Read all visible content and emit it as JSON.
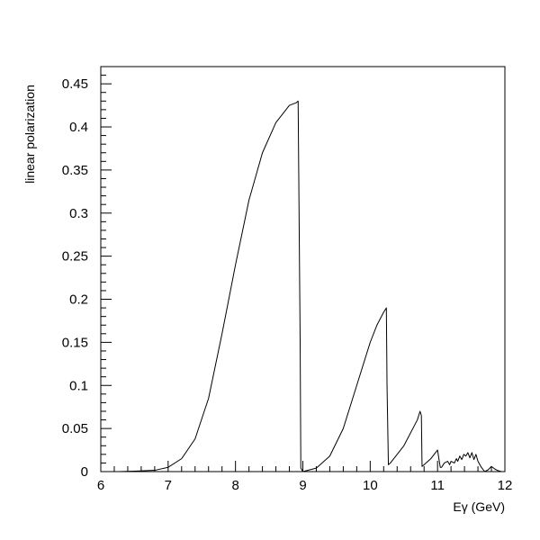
{
  "chart_data": {
    "type": "line",
    "title": "",
    "xlabel": "Eγ (GeV)",
    "ylabel": "linear polarization",
    "xlim": [
      6,
      12
    ],
    "ylim": [
      0,
      0.47
    ],
    "xticks": [
      6,
      7,
      8,
      9,
      10,
      11,
      12
    ],
    "xtick_labels": [
      "6",
      "7",
      "8",
      "9",
      "10",
      "11",
      "12"
    ],
    "yticks": [
      0,
      0.05,
      0.1,
      0.15,
      0.2,
      0.25,
      0.3,
      0.35,
      0.4,
      0.45
    ],
    "ytick_labels": [
      "0",
      "0.05",
      "0.1",
      "0.15",
      "0.2",
      "0.25",
      "0.3",
      "0.35",
      "0.4",
      "0.45"
    ],
    "grid": false,
    "legend": "none",
    "series": [
      {
        "color": "#000000",
        "x": [
          6.27,
          6.5,
          6.8,
          7.0,
          7.2,
          7.4,
          7.6,
          7.8,
          8.0,
          8.2,
          8.4,
          8.6,
          8.8,
          8.9,
          8.93,
          8.96,
          8.97,
          9.0,
          9.2,
          9.4,
          9.6,
          9.8,
          10.0,
          10.1,
          10.2,
          10.24,
          10.25,
          10.27,
          10.3,
          10.5,
          10.7,
          10.74,
          10.76,
          10.77,
          10.8,
          10.9,
          11.0,
          11.02,
          11.04,
          11.06,
          11.1,
          11.15,
          11.18,
          11.2,
          11.25,
          11.28,
          11.3,
          11.33,
          11.36,
          11.39,
          11.42,
          11.45,
          11.48,
          11.51,
          11.54,
          11.57,
          11.6,
          11.65,
          11.7,
          11.75,
          11.8,
          11.85,
          11.9,
          11.95,
          12.0
        ],
        "y": [
          0.0,
          0.0005,
          0.0015,
          0.005,
          0.015,
          0.038,
          0.085,
          0.16,
          0.24,
          0.315,
          0.37,
          0.405,
          0.425,
          0.428,
          0.43,
          0.15,
          0.004,
          0.0,
          0.004,
          0.018,
          0.05,
          0.1,
          0.15,
          0.17,
          0.185,
          0.19,
          0.1,
          0.008,
          0.01,
          0.03,
          0.06,
          0.07,
          0.065,
          0.006,
          0.008,
          0.015,
          0.025,
          0.015,
          0.005,
          0.005,
          0.01,
          0.012,
          0.008,
          0.012,
          0.01,
          0.015,
          0.012,
          0.018,
          0.014,
          0.02,
          0.018,
          0.022,
          0.016,
          0.022,
          0.014,
          0.02,
          0.012,
          0.005,
          0.0,
          0.002,
          0.006,
          0.003,
          0.001,
          0.0,
          0.0
        ]
      }
    ]
  }
}
